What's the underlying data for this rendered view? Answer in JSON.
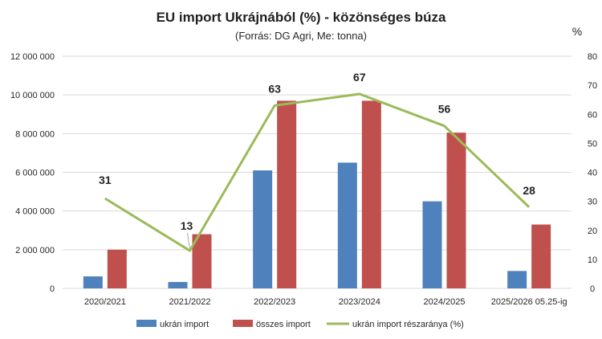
{
  "chart_data": {
    "type": "bar",
    "title": "EU import Ukrájnából (%) - közönséges búza",
    "subtitle": "(Forrás: DG Agri, Me: tonna)",
    "right_axis_unit": "%",
    "categories": [
      "2020/2021",
      "2021/2022",
      "2022/2023",
      "2023/2024",
      "2024/2025",
      "2025/2026 05.25-ig"
    ],
    "series": [
      {
        "name": "ukrán import",
        "type": "bar",
        "axis": "left",
        "color": "#4f81bd",
        "values": [
          620000,
          330000,
          6100000,
          6500000,
          4500000,
          900000
        ]
      },
      {
        "name": "összes import",
        "type": "bar",
        "axis": "left",
        "color": "#c0504d",
        "values": [
          2000000,
          2800000,
          9700000,
          9700000,
          8050000,
          3300000
        ]
      },
      {
        "name": "ukrán import részaránya (%)",
        "type": "line",
        "axis": "right",
        "color": "#9bbb59",
        "values": [
          31,
          13,
          63,
          67,
          56,
          28
        ],
        "data_labels": [
          "31",
          "13",
          "63",
          "67",
          "56",
          "28"
        ]
      }
    ],
    "y_left": {
      "min": 0,
      "max": 12000000,
      "step": 2000000,
      "tick_labels": [
        "0",
        "2 000 000",
        "4 000 000",
        "6 000 000",
        "8 000 000",
        "10 000 000",
        "12 000 000"
      ]
    },
    "y_right": {
      "min": 0,
      "max": 80,
      "step": 10,
      "tick_labels": [
        "0",
        "10",
        "20",
        "30",
        "40",
        "50",
        "60",
        "70",
        "80"
      ]
    },
    "grid": true,
    "legend_position": "bottom"
  }
}
